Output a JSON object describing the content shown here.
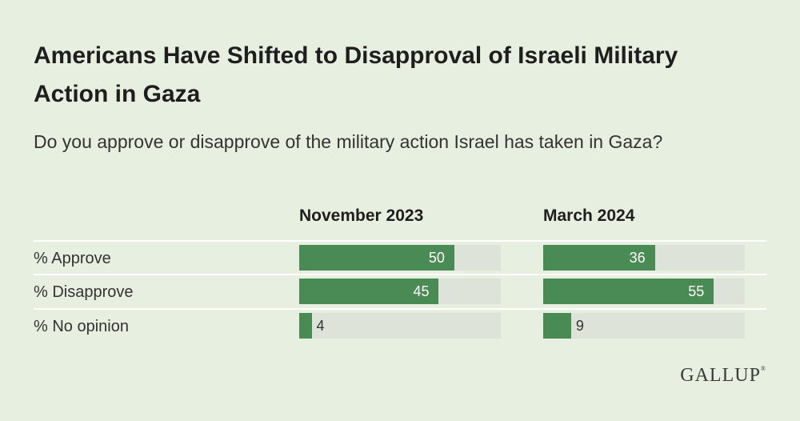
{
  "chart_data": {
    "type": "bar",
    "title": "Americans Have Shifted to Disapproval of Israeli Military Action in Gaza",
    "subtitle": "Do you approve or disapprove of the military action Israel has taken in Gaza?",
    "categories": [
      "% Approve",
      "% Disapprove",
      "% No opinion"
    ],
    "series": [
      {
        "name": "November 2023",
        "values": [
          50,
          45,
          4
        ]
      },
      {
        "name": "March 2024",
        "values": [
          36,
          55,
          9
        ]
      }
    ],
    "xlim": [
      0,
      65
    ],
    "colors": {
      "bar": "#4a8a55",
      "track": "#dde3d8",
      "background": "#e6efe0"
    }
  },
  "brand": {
    "name": "GALLUP",
    "mark": "®"
  }
}
